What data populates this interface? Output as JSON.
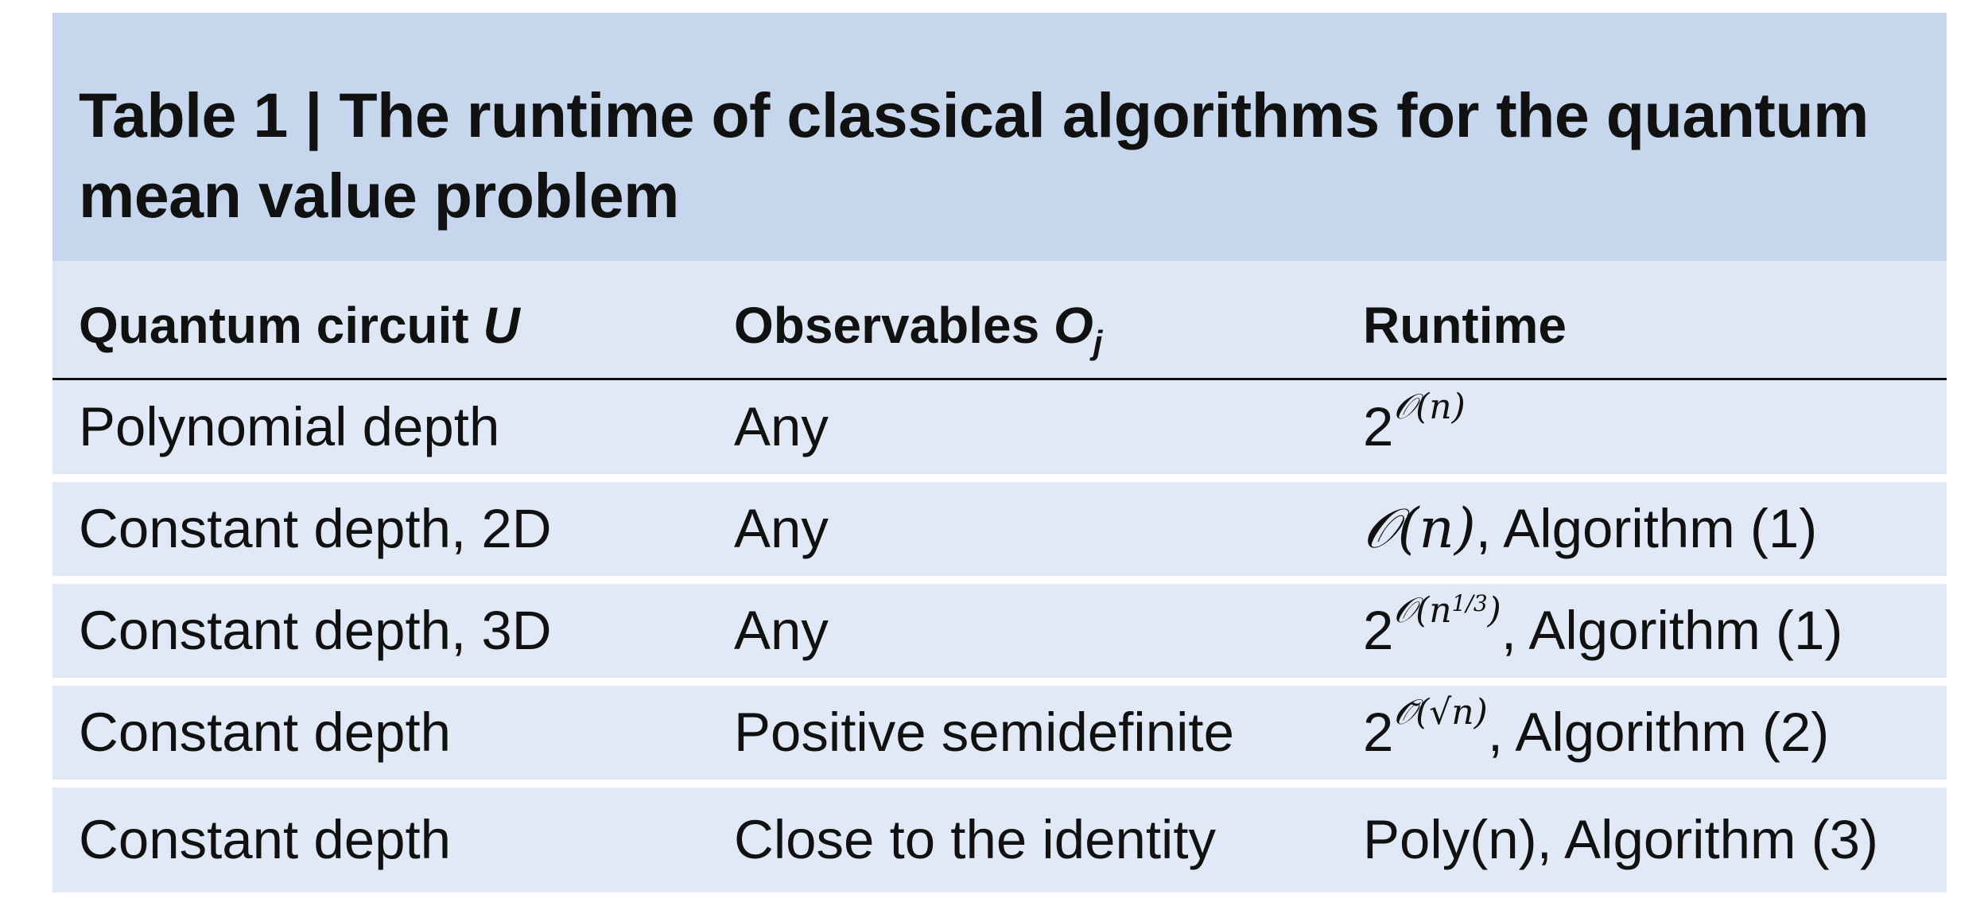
{
  "table": {
    "title": "Table 1 | The runtime of classical algorithms for the quantum mean value problem",
    "headers": {
      "circuit": "Quantum circuit",
      "circuit_var": "U",
      "observables": "Observables",
      "observables_var": "O",
      "observables_sub": "j",
      "runtime": "Runtime"
    },
    "rows": [
      {
        "circuit": "Polynomial depth",
        "observables": "Any",
        "runtime_base": "2",
        "runtime_exp": "𝒪(n)",
        "runtime_suffix": ""
      },
      {
        "circuit": "Constant depth, 2D",
        "observables": "Any",
        "runtime_main": "𝒪(n)",
        "runtime_suffix": ", Algorithm (1)"
      },
      {
        "circuit": "Constant depth, 3D",
        "observables": "Any",
        "runtime_base": "2",
        "runtime_exp": "𝒪(n",
        "runtime_exp_inner": "1/3",
        "runtime_exp_close": ")",
        "runtime_suffix": ", Algorithm (1)"
      },
      {
        "circuit": "Constant depth",
        "observables": "Positive semidefinite",
        "runtime_base": "2",
        "runtime_exp": "𝒪̃(√n)",
        "runtime_suffix": ", Algorithm (2)"
      },
      {
        "circuit": "Constant depth",
        "observables": "Close to the identity",
        "runtime_main": "Poly(n)",
        "runtime_suffix": ", Algorithm (3)"
      }
    ]
  },
  "colors": {
    "title_band": "#c6d6ed",
    "header_band": "#dfe7f5",
    "row_band": "#e1e9f6",
    "rule": "#111111"
  }
}
